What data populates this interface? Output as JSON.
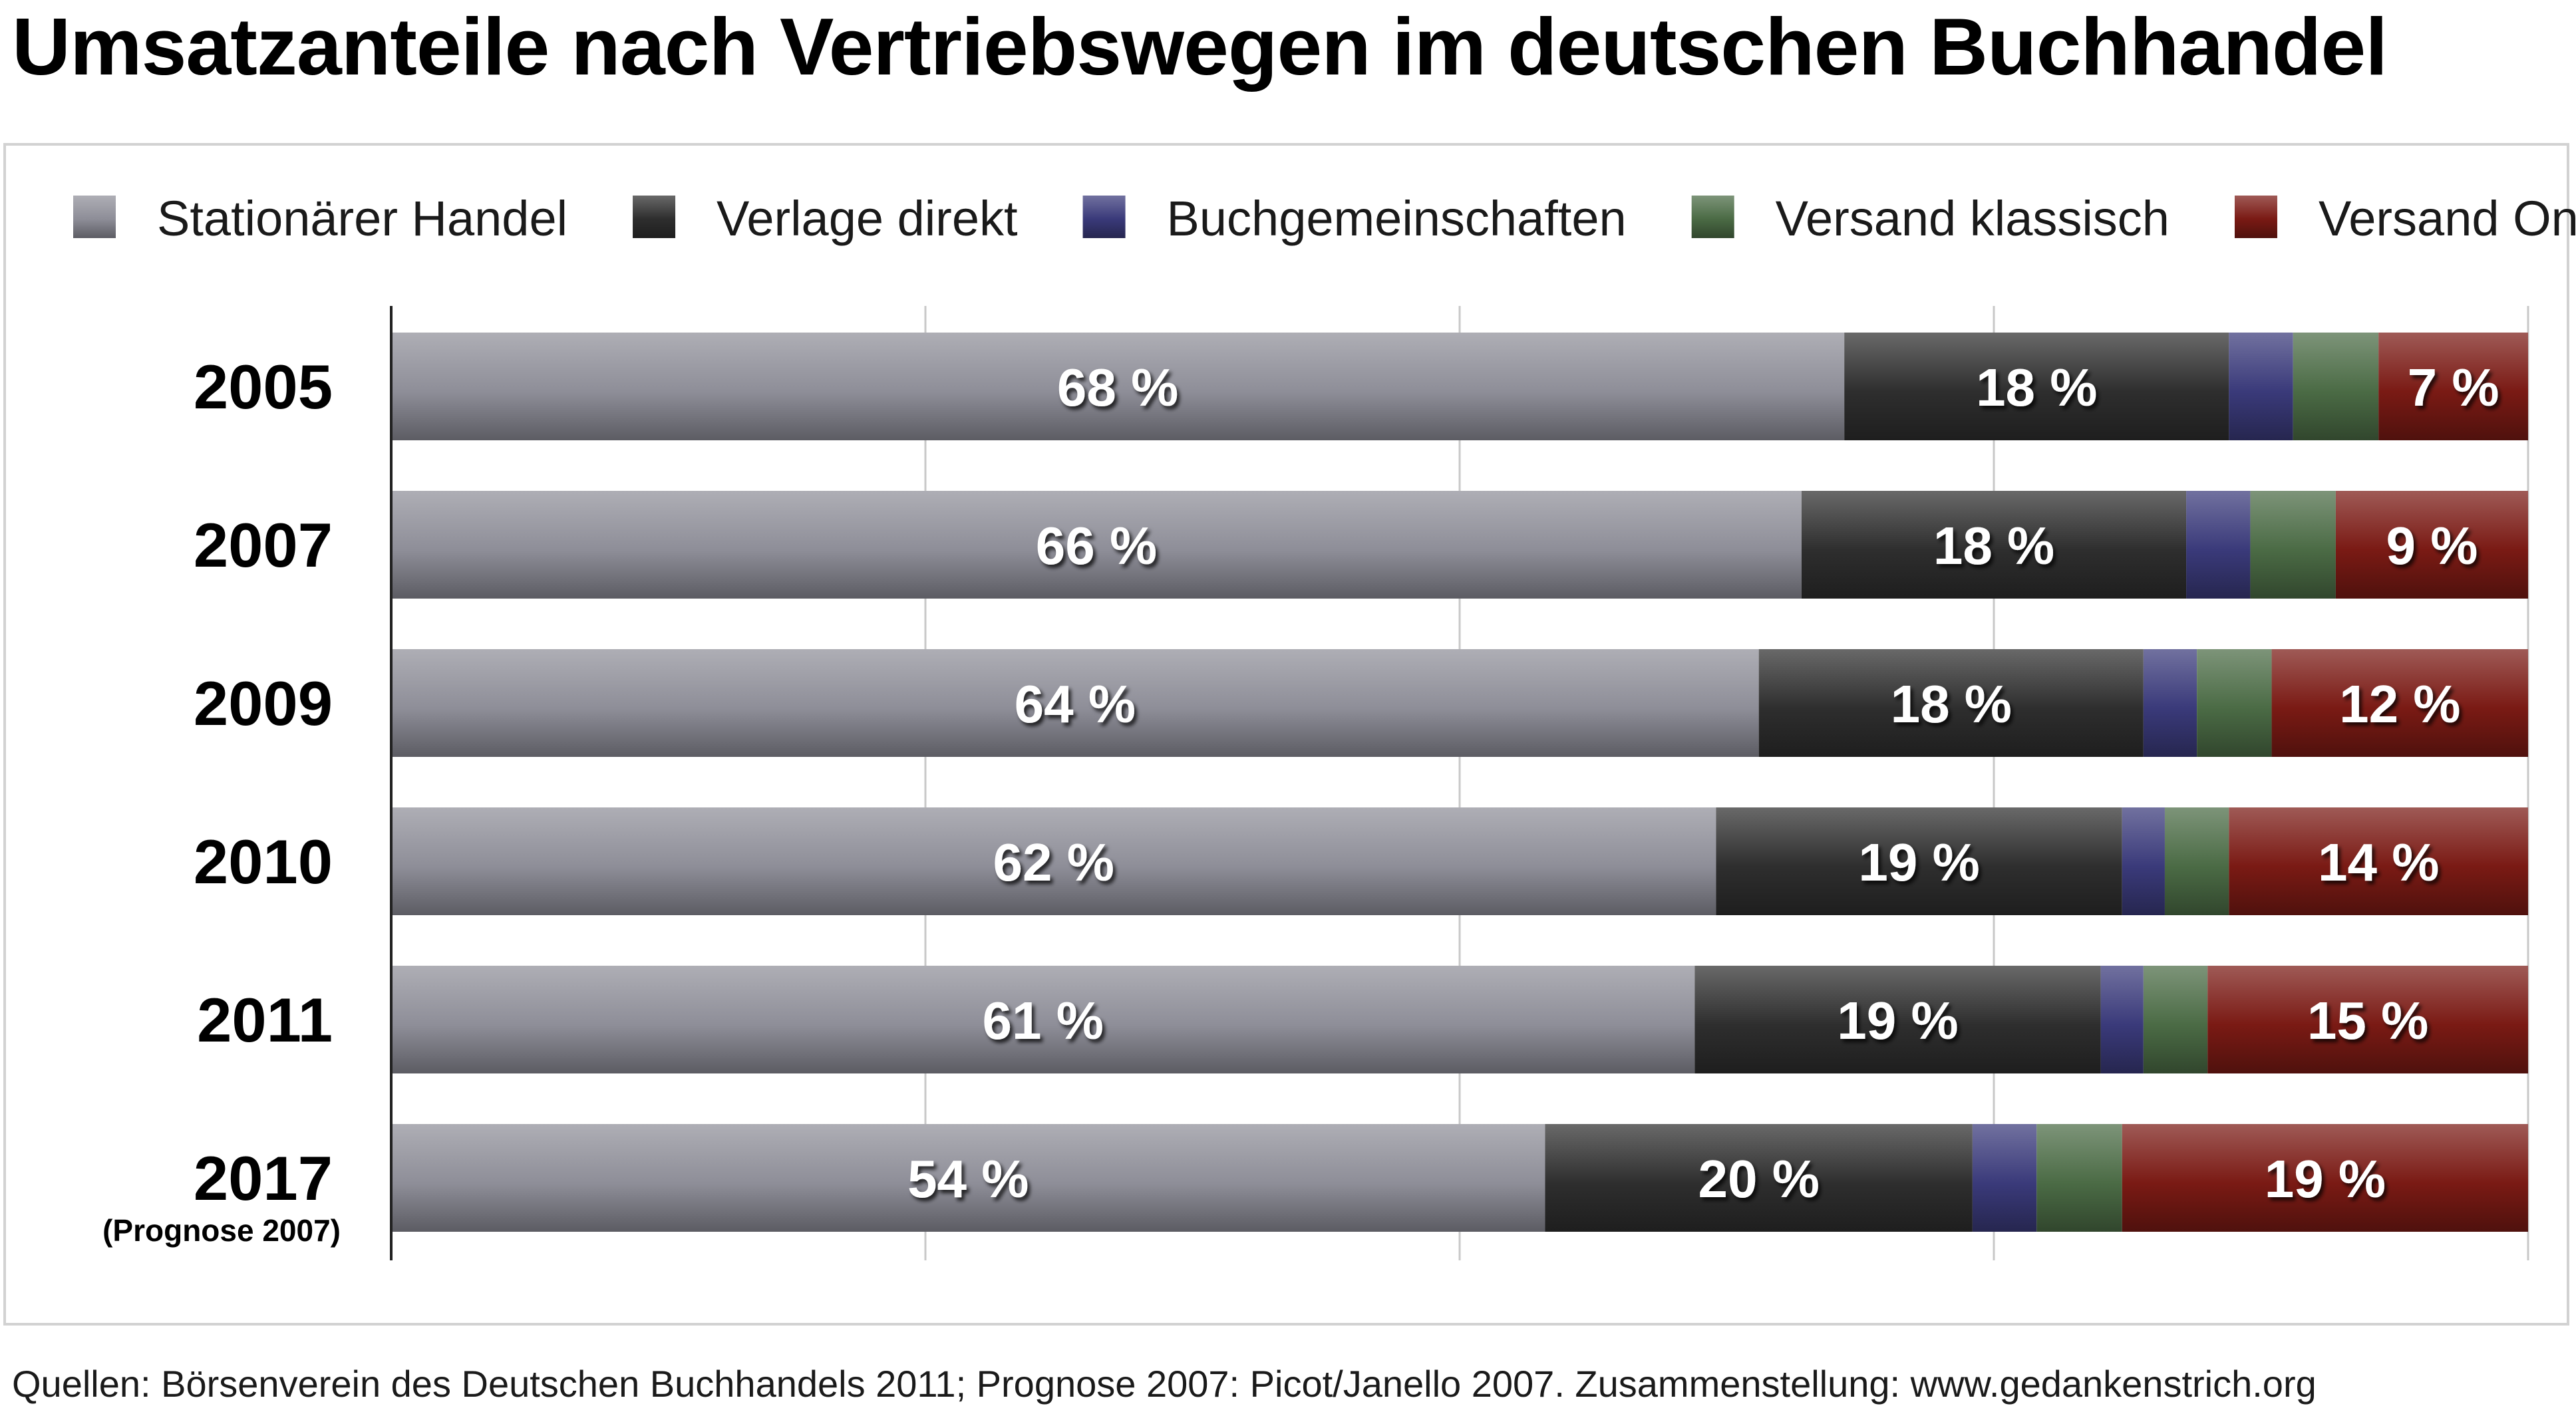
{
  "title": "Umsatzanteile nach Vertriebswegen im deutschen Buchhandel",
  "source": "Quellen: Börsenverein des Deutschen Buchhandels 2011; Prognose 2007: Picot/Janello 2007. Zusammenstellung: www.gedankenstrich.org",
  "colors": {
    "Stationärer Handel": "#8e8e98",
    "Verlage direkt": "#2e2e2e",
    "Buchgemeinschaften": "#3a3a7a",
    "Versand klassisch": "#4b6b45",
    "Versand Online": "#7a1a14"
  },
  "chart_data": {
    "type": "bar",
    "orientation": "horizontal",
    "stacked": true,
    "title": "Umsatzanteile nach Vertriebswegen im deutschen Buchhandel",
    "xlim": [
      0,
      100
    ],
    "grid": true,
    "legend": "top",
    "categories": [
      "2005",
      "2007",
      "2009",
      "2010",
      "2011",
      "2017"
    ],
    "category_notes": [
      "",
      "",
      "",
      "",
      "",
      "(Prognose 2007)"
    ],
    "series": [
      {
        "name": "Stationärer Handel",
        "values": [
          68,
          66,
          64,
          62,
          61,
          54
        ],
        "labels": [
          "68 %",
          "66 %",
          "64 %",
          "62 %",
          "61 %",
          "54 %"
        ]
      },
      {
        "name": "Verlage direkt",
        "values": [
          18,
          18,
          18,
          19,
          19,
          20
        ],
        "labels": [
          "18 %",
          "18 %",
          "18 %",
          "19 %",
          "19 %",
          "20 %"
        ]
      },
      {
        "name": "Buchgemeinschaften",
        "values": [
          3,
          3,
          2.5,
          2,
          2,
          3
        ],
        "labels": [
          "",
          "",
          "",
          "",
          "",
          ""
        ]
      },
      {
        "name": "Versand klassisch",
        "values": [
          4,
          4,
          3.5,
          3,
          3,
          4
        ],
        "labels": [
          "",
          "",
          "",
          "",
          "",
          ""
        ]
      },
      {
        "name": "Versand Online",
        "values": [
          7,
          9,
          12,
          14,
          15,
          19
        ],
        "labels": [
          "7 %",
          "9 %",
          "12 %",
          "14 %",
          "15 %",
          "19 %"
        ]
      }
    ]
  }
}
